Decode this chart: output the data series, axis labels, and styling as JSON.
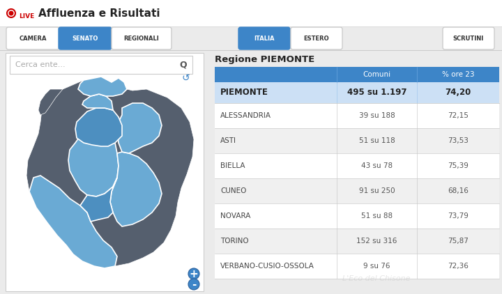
{
  "bg_color": "#ebebeb",
  "header_bg": "#ffffff",
  "header_title": "Affluenza e Risultati",
  "nav_buttons": [
    "CAMERA",
    "SENATO",
    "REGIONALI",
    "ITALIA",
    "ESTERO",
    "SCRUTINI"
  ],
  "nav_active": [
    "SENATO",
    "ITALIA"
  ],
  "nav_active_color": "#3d85c8",
  "nav_inactive_color": "#ffffff",
  "nav_text_active": "#ffffff",
  "nav_text_inactive": "#333333",
  "region_title": "Regione PIEMONTE",
  "table_header_bg": "#3d85c8",
  "table_header_text": "#ffffff",
  "table_header_cols": [
    "Comuni",
    "% ore 23"
  ],
  "table_highlight_bg": "#cce0f5",
  "table_alt_bg": "#f0f0f0",
  "table_white_bg": "#ffffff",
  "highlight_row": {
    "name": "PIEMONTE",
    "comuni": "495 su 1.197",
    "pct": "74,20"
  },
  "rows": [
    {
      "name": "ALESSANDRIA",
      "comuni": "39 su 188",
      "pct": "72,15"
    },
    {
      "name": "ASTI",
      "comuni": "51 su 118",
      "pct": "73,53"
    },
    {
      "name": "BIELLA",
      "comuni": "43 su 78",
      "pct": "75,39"
    },
    {
      "name": "CUNEO",
      "comuni": "91 su 250",
      "pct": "68,16"
    },
    {
      "name": "NOVARA",
      "comuni": "51 su 88",
      "pct": "73,79"
    },
    {
      "name": "TORINO",
      "comuni": "152 su 316",
      "pct": "75,87"
    },
    {
      "name": "VERBANO-CUSIO-OSSOLA",
      "comuni": "9 su 76",
      "pct": "72,36"
    }
  ],
  "search_placeholder": "Cerca ente...",
  "live_dot_color": "#cc0000",
  "map_dark": "#555f6e",
  "map_light_blue": "#6aaad4",
  "map_mid_blue": "#4d8fc0"
}
